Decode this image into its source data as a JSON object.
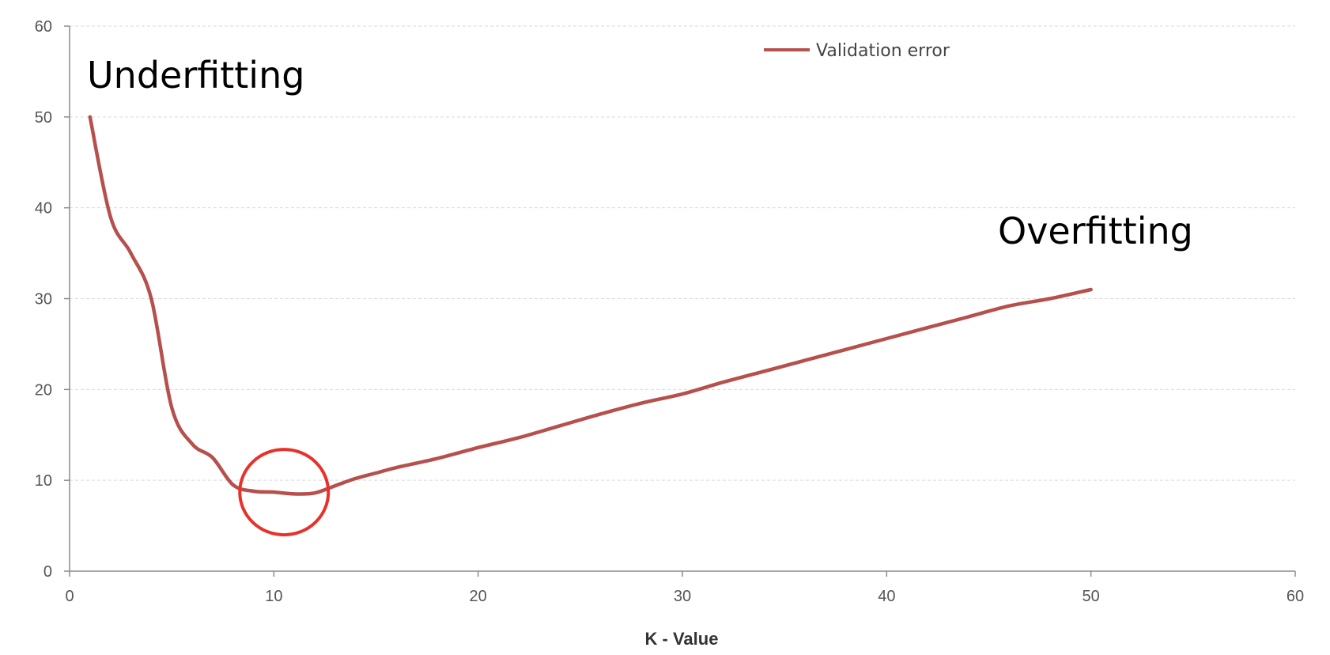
{
  "chart_data": {
    "type": "line",
    "title": "",
    "xlabel": "K - Value",
    "ylabel": "",
    "xlim": [
      0,
      60
    ],
    "ylim": [
      0,
      60
    ],
    "xticks": [
      0,
      10,
      20,
      30,
      40,
      50,
      60
    ],
    "yticks": [
      0,
      10,
      20,
      30,
      40,
      50,
      60
    ],
    "grid": "horizontal dashed",
    "legend_position": "top-center",
    "series": [
      {
        "name": "Validation error",
        "color": "#b5504d",
        "x": [
          1,
          2,
          3,
          4,
          5,
          6,
          7,
          8,
          9,
          10,
          11,
          12,
          13,
          14,
          15,
          16,
          18,
          20,
          22,
          24,
          26,
          28,
          30,
          32,
          34,
          36,
          38,
          40,
          42,
          44,
          46,
          48,
          50
        ],
        "y": [
          50,
          39,
          35,
          30,
          18,
          14,
          12.5,
          9.5,
          8.8,
          8.7,
          8.5,
          8.6,
          9.4,
          10.2,
          10.8,
          11.4,
          12.4,
          13.6,
          14.7,
          16,
          17.3,
          18.5,
          19.5,
          20.8,
          22,
          23.2,
          24.4,
          25.6,
          26.8,
          28,
          29.2,
          30,
          31
        ]
      }
    ],
    "annotations": [
      {
        "text": "Underfitting",
        "position": "top-left"
      },
      {
        "text": "Overfitting",
        "position": "upper-right"
      }
    ],
    "highlight": {
      "shape": "circle",
      "color": "#e8312b",
      "x": 10.5,
      "y": 8.7
    }
  }
}
